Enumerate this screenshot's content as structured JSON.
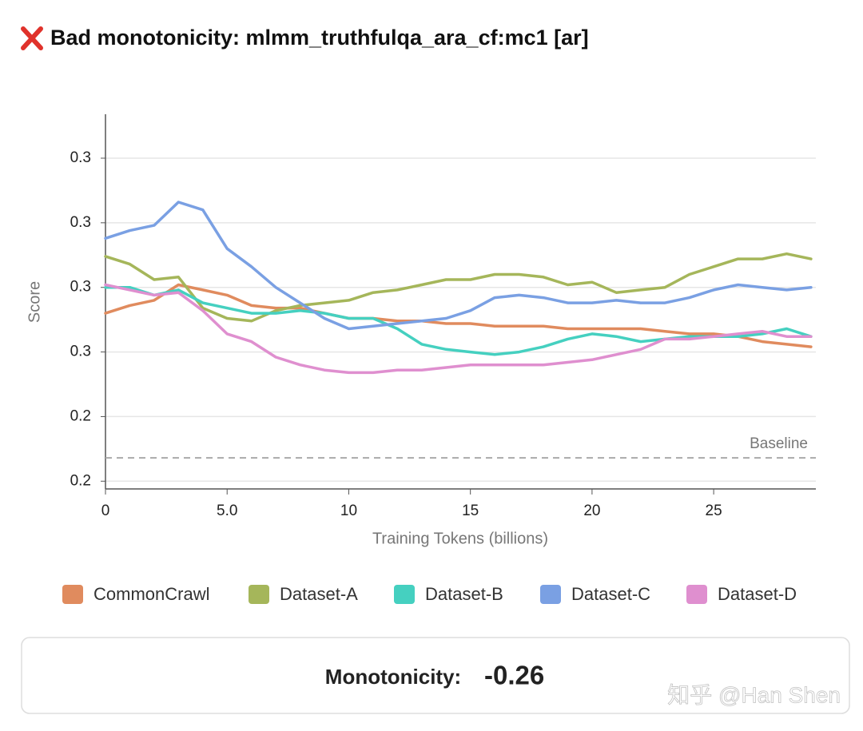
{
  "chart_data": {
    "type": "line",
    "title": "Bad monotonicity: mlmm_truthfulqa_ara_cf:mc1 [ar]",
    "x_label": "Training Tokens (billions)",
    "y_label": "Score",
    "xlim": [
      0,
      29.2
    ],
    "xticks": [
      0,
      {
        "value": 5,
        "label": "5.0"
      },
      10,
      15,
      20,
      25
    ],
    "ylim": [
      0.197,
      0.342
    ],
    "yticks": [
      {
        "value": 0.2,
        "label": "0.2"
      },
      {
        "value": 0.225,
        "label": "0.2"
      },
      {
        "value": 0.25,
        "label": "0.3"
      },
      {
        "value": 0.275,
        "label": "0.3"
      },
      {
        "value": 0.3,
        "label": "0.3"
      },
      {
        "value": 0.325,
        "label": "0.3"
      }
    ],
    "grid": true,
    "baseline": {
      "label": "Baseline",
      "value": 0.209
    },
    "x": [
      0,
      1,
      2,
      3,
      4,
      5,
      6,
      7,
      8,
      9,
      10,
      11,
      12,
      13,
      14,
      15,
      16,
      17,
      18,
      19,
      20,
      21,
      22,
      23,
      24,
      25,
      26,
      27,
      28,
      29
    ],
    "series": [
      {
        "name": "CommonCrawl",
        "color": "#e08b5e",
        "values": [
          0.265,
          0.268,
          0.27,
          0.276,
          0.274,
          0.272,
          0.268,
          0.267,
          0.267,
          0.265,
          0.263,
          0.263,
          0.262,
          0.262,
          0.261,
          0.261,
          0.26,
          0.26,
          0.26,
          0.259,
          0.259,
          0.259,
          0.259,
          0.258,
          0.257,
          0.257,
          0.256,
          0.254,
          0.253,
          0.252
        ]
      },
      {
        "name": "Dataset-A",
        "color": "#a5b65a",
        "values": [
          0.287,
          0.284,
          0.278,
          0.279,
          0.267,
          0.263,
          0.262,
          0.266,
          0.268,
          0.269,
          0.27,
          0.273,
          0.274,
          0.276,
          0.278,
          0.278,
          0.28,
          0.28,
          0.279,
          0.276,
          0.277,
          0.273,
          0.274,
          0.275,
          0.28,
          0.283,
          0.286,
          0.286,
          0.288,
          0.286
        ]
      },
      {
        "name": "Dataset-B",
        "color": "#45d0c0",
        "values": [
          0.275,
          0.275,
          0.272,
          0.274,
          0.269,
          0.267,
          0.265,
          0.265,
          0.266,
          0.265,
          0.263,
          0.263,
          0.259,
          0.253,
          0.251,
          0.25,
          0.249,
          0.25,
          0.252,
          0.255,
          0.257,
          0.256,
          0.254,
          0.255,
          0.256,
          0.256,
          0.256,
          0.257,
          0.259,
          0.256
        ]
      },
      {
        "name": "Dataset-C",
        "color": "#7aa0e3",
        "values": [
          0.294,
          0.297,
          0.299,
          0.308,
          0.305,
          0.29,
          0.283,
          0.275,
          0.269,
          0.263,
          0.259,
          0.26,
          0.261,
          0.262,
          0.263,
          0.266,
          0.271,
          0.272,
          0.271,
          0.269,
          0.269,
          0.27,
          0.269,
          0.269,
          0.271,
          0.274,
          0.276,
          0.275,
          0.274,
          0.275
        ]
      },
      {
        "name": "Dataset-D",
        "color": "#df8fcf",
        "values": [
          0.276,
          0.274,
          0.272,
          0.273,
          0.266,
          0.257,
          0.254,
          0.248,
          0.245,
          0.243,
          0.242,
          0.242,
          0.243,
          0.243,
          0.244,
          0.245,
          0.245,
          0.245,
          0.245,
          0.246,
          0.247,
          0.249,
          0.251,
          0.255,
          0.255,
          0.256,
          0.257,
          0.258,
          0.256,
          0.256
        ]
      }
    ]
  },
  "summary": {
    "label": "Monotonicity:",
    "value": -0.26
  },
  "watermark": "知乎 @Han Shen"
}
